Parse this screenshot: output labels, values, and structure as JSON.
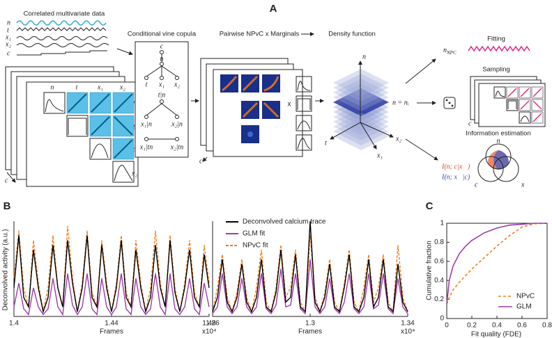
{
  "panel_a": {
    "label": "A",
    "data_title": "Correlated multivariate data",
    "variables": [
      "n",
      "t",
      "x₁",
      "x₂",
      "c"
    ],
    "matrix_labels": [
      "n",
      "t",
      "x₁",
      "x₂"
    ],
    "stack_axis": "c",
    "vine_title": "Conditional vine copula",
    "vine_nodes": [
      "c",
      "n",
      "t",
      "x₁",
      "x₂",
      "t|n",
      "x₁|n",
      "x₂|n",
      "x₁|tn",
      "x₂|tn"
    ],
    "pairwise_title": "Pairwise NPvC  x  Marginals",
    "times_sign": "x",
    "density_title": "Density function",
    "slice_label": "n = nᵢ",
    "density_axes": [
      "n",
      "t",
      "x₂",
      "x₁"
    ],
    "fitting_title": "Fitting",
    "fit_symbol": "n",
    "fit_subscript": "NPC",
    "sampling_title": "Sampling",
    "info_title": "Information estimation",
    "info_terms": [
      "I(n; c|x⃗)",
      "I(n; x⃗|c)"
    ],
    "venn_labels": [
      "n",
      "c",
      "x⃗"
    ]
  },
  "panel_b": {
    "label": "B",
    "y_label": "Deconvolved activity (a.u.)",
    "ylim": [
      0,
      1
    ],
    "plots": [
      {
        "x_label": "Frames",
        "x_multiplier": "x10⁴",
        "xlim": [
          14000,
          14800
        ],
        "xticks": [
          {
            "value": 14000,
            "label": "1.4"
          },
          {
            "value": 14400,
            "label": "1.44"
          },
          {
            "value": 14800,
            "label": "1.48"
          }
        ],
        "x": [
          14000,
          14020,
          14040,
          14060,
          14080,
          14100,
          14120,
          14140,
          14160,
          14180,
          14200,
          14220,
          14240,
          14260,
          14280,
          14300,
          14320,
          14340,
          14360,
          14380,
          14400,
          14420,
          14440,
          14460,
          14480,
          14500,
          14520,
          14540,
          14560,
          14580,
          14600,
          14620,
          14640,
          14660,
          14680,
          14700,
          14720,
          14740,
          14760,
          14780,
          14800
        ],
        "series": [
          {
            "name": "Deconvolved calcium trace",
            "color": "#000000",
            "values": [
              0.3,
              0.85,
              0.2,
              0.1,
              0.7,
              0.3,
              0.05,
              0.2,
              0.75,
              0.3,
              0.1,
              0.8,
              0.35,
              0.05,
              0.3,
              0.85,
              0.2,
              0.1,
              0.75,
              0.3,
              0.05,
              0.3,
              0.8,
              0.2,
              0.1,
              0.7,
              0.3,
              0.05,
              0.2,
              0.75,
              0.3,
              0.1,
              0.8,
              0.25,
              0.05,
              0.3,
              0.7,
              0.2,
              0.1,
              0.65,
              0.3
            ]
          },
          {
            "name": "GLM fit",
            "color": "#a03aa8",
            "values": [
              0.1,
              0.35,
              0.08,
              0.02,
              0.3,
              0.1,
              0.02,
              0.08,
              0.4,
              0.1,
              0.02,
              0.45,
              0.12,
              0.02,
              0.1,
              0.45,
              0.08,
              0.02,
              0.4,
              0.1,
              0.02,
              0.1,
              0.45,
              0.08,
              0.02,
              0.4,
              0.1,
              0.02,
              0.08,
              0.45,
              0.1,
              0.02,
              0.45,
              0.08,
              0.02,
              0.1,
              0.4,
              0.08,
              0.02,
              0.35,
              0.1
            ]
          },
          {
            "name": "NPvC fit",
            "color": "#f07f1e",
            "dashed": true,
            "values": [
              0.4,
              0.9,
              0.3,
              0.1,
              0.8,
              0.35,
              0.05,
              0.3,
              0.85,
              0.3,
              0.1,
              0.95,
              0.4,
              0.05,
              0.35,
              0.9,
              0.25,
              0.1,
              0.8,
              0.35,
              0.05,
              0.35,
              0.85,
              0.25,
              0.1,
              0.8,
              0.35,
              0.05,
              0.3,
              0.9,
              0.35,
              0.1,
              0.85,
              0.3,
              0.05,
              0.35,
              0.8,
              0.25,
              0.1,
              0.75,
              0.35
            ]
          }
        ]
      },
      {
        "x_label": "Frames",
        "x_multiplier": "x10⁴",
        "xlim": [
          12600,
          13400
        ],
        "xticks": [
          {
            "value": 12600,
            "label": "1.26"
          },
          {
            "value": 13000,
            "label": "1.3"
          },
          {
            "value": 13400,
            "label": "1.34"
          }
        ],
        "x": [
          12600,
          12620,
          12640,
          12660,
          12680,
          12700,
          12720,
          12740,
          12760,
          12780,
          12800,
          12820,
          12840,
          12860,
          12880,
          12900,
          12920,
          12940,
          12960,
          12980,
          13000,
          13020,
          13040,
          13060,
          13080,
          13100,
          13120,
          13140,
          13160,
          13180,
          13200,
          13220,
          13240,
          13260,
          13280,
          13300,
          13320,
          13340,
          13360,
          13380,
          13400
        ],
        "series": [
          {
            "name": "Deconvolved calcium trace",
            "color": "#000000",
            "values": [
              0.05,
              0.2,
              0.6,
              0.15,
              0.05,
              0.2,
              0.55,
              0.15,
              0.05,
              0.2,
              0.6,
              0.1,
              0.05,
              0.25,
              0.7,
              0.15,
              0.2,
              0.65,
              0.1,
              0.05,
              1.0,
              0.15,
              0.05,
              0.2,
              0.55,
              0.1,
              0.05,
              0.3,
              0.65,
              0.1,
              0.05,
              0.2,
              0.6,
              0.1,
              0.2,
              0.6,
              0.1,
              0.05,
              0.55,
              0.15,
              0.05
            ]
          },
          {
            "name": "GLM fit",
            "color": "#a03aa8",
            "values": [
              0.03,
              0.1,
              0.45,
              0.1,
              0.03,
              0.1,
              0.4,
              0.1,
              0.03,
              0.1,
              0.45,
              0.08,
              0.03,
              0.12,
              0.5,
              0.1,
              0.12,
              0.45,
              0.08,
              0.03,
              0.6,
              0.1,
              0.03,
              0.1,
              0.4,
              0.08,
              0.03,
              0.15,
              0.45,
              0.08,
              0.03,
              0.1,
              0.45,
              0.08,
              0.12,
              0.45,
              0.08,
              0.03,
              0.4,
              0.1,
              0.03
            ]
          },
          {
            "name": "NPvC fit",
            "color": "#f07f1e",
            "dashed": true,
            "values": [
              0.05,
              0.3,
              0.65,
              0.2,
              0.05,
              0.25,
              0.6,
              0.2,
              0.05,
              0.3,
              0.7,
              0.15,
              0.05,
              0.3,
              0.75,
              0.2,
              0.3,
              0.7,
              0.15,
              0.05,
              0.85,
              0.2,
              0.05,
              0.25,
              0.6,
              0.15,
              0.05,
              0.35,
              0.7,
              0.15,
              0.05,
              0.3,
              0.65,
              0.15,
              0.3,
              0.65,
              0.15,
              0.05,
              0.75,
              0.2,
              0.05
            ]
          }
        ]
      }
    ]
  },
  "chart_data": {
    "type": "line",
    "label": "C",
    "x_label": "Fit quality (FDE)",
    "y_label": "Cumulative fraction",
    "xlim": [
      0,
      0.8
    ],
    "ylim": [
      0,
      1
    ],
    "xticks": [
      0,
      0.2,
      0.4,
      0.6,
      0.8
    ],
    "yticks": [
      0,
      0.2,
      0.4,
      0.6,
      0.8,
      1
    ],
    "x": [
      0,
      0.02,
      0.05,
      0.1,
      0.15,
      0.2,
      0.3,
      0.4,
      0.5,
      0.6,
      0.7,
      0.8
    ],
    "series": [
      {
        "name": "NPvC",
        "color": "#f07f1e",
        "dashed": true,
        "values": [
          0.15,
          0.22,
          0.3,
          0.38,
          0.45,
          0.52,
          0.64,
          0.76,
          0.87,
          0.96,
          0.995,
          1
        ]
      },
      {
        "name": "GLM",
        "color": "#a03aa8",
        "values": [
          0.15,
          0.4,
          0.55,
          0.68,
          0.76,
          0.82,
          0.9,
          0.95,
          0.98,
          0.99,
          1,
          1
        ]
      }
    ],
    "legend": "lower right"
  }
}
